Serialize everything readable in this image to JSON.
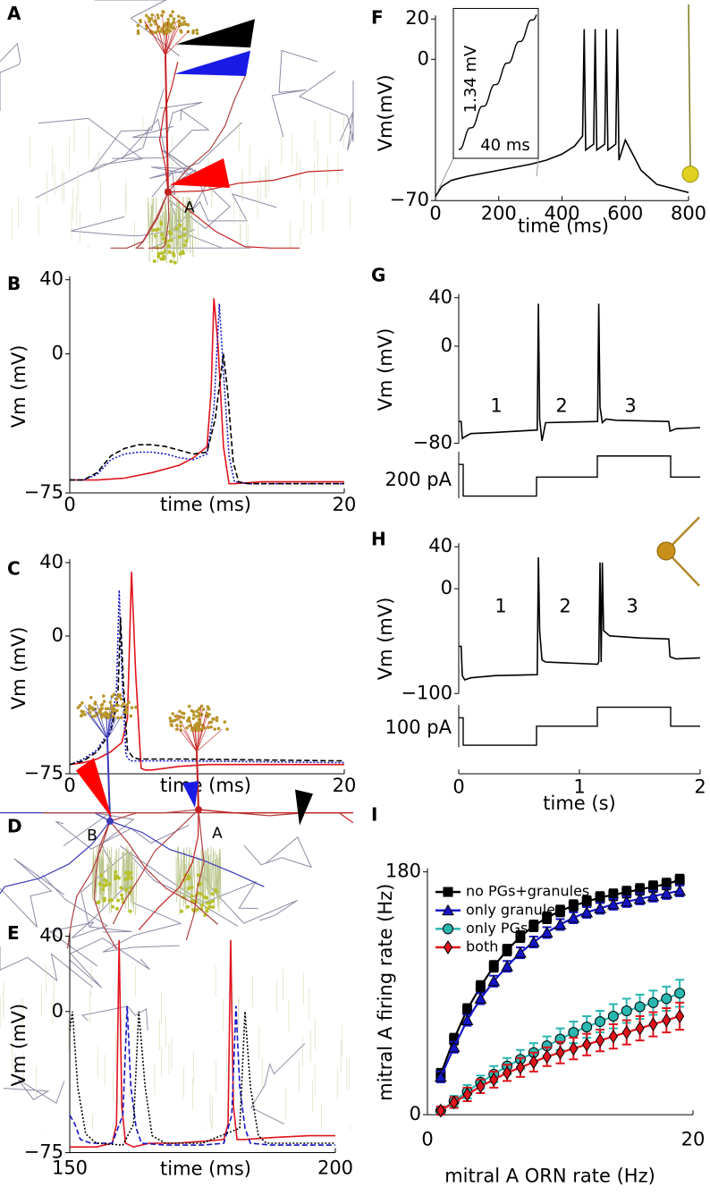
{
  "chart_data": [
    {
      "type": "illustration",
      "panel": "A",
      "labels": [
        "A"
      ]
    },
    {
      "type": "line",
      "panel": "B",
      "x_label": "time (ms)",
      "y_label": "Vm (mV)",
      "xlim": [
        0,
        20
      ],
      "xticks": [
        0,
        20
      ],
      "ylim": [
        -75,
        40
      ],
      "yticks": [
        40,
        0,
        {
          "value": -75,
          "label": "−75"
        }
      ],
      "series": [
        {
          "color": "#e0141c",
          "style": "solid",
          "x": [
            0,
            2,
            4,
            6,
            8,
            9,
            10,
            10.3,
            10.5,
            10.8,
            11.2,
            11.6,
            12,
            14,
            20
          ],
          "values": [
            -68,
            -68,
            -67,
            -64,
            -60,
            -56,
            -50,
            -20,
            30,
            5,
            -50,
            -70,
            -70,
            -69,
            -69
          ]
        },
        {
          "color": "#1515c8",
          "style": "dotted",
          "x": [
            0,
            1,
            2,
            3,
            4,
            5,
            6,
            7,
            8,
            9,
            10,
            10.5,
            10.9,
            11.2,
            11.6,
            12,
            13,
            20
          ],
          "values": [
            -68,
            -68,
            -65,
            -57,
            -54,
            -53,
            -53,
            -54,
            -56,
            -57,
            -54,
            -30,
            27,
            -10,
            -55,
            -69,
            -70,
            -70
          ]
        },
        {
          "color": "#000000",
          "style": "dashed",
          "x": [
            0,
            1,
            2,
            3,
            4,
            5,
            6,
            7,
            8,
            9,
            10,
            10.6,
            11.2,
            11.5,
            11.9,
            12.3,
            13,
            20
          ],
          "values": [
            -68,
            -68,
            -64,
            -55,
            -51,
            -49,
            -49,
            -50,
            -52,
            -54,
            -53,
            -35,
            0,
            -20,
            -58,
            -69,
            -70,
            -70
          ]
        }
      ]
    },
    {
      "type": "line",
      "panel": "C",
      "x_label": "time (ms)",
      "y_label": "Vm (mV)",
      "xlim": [
        0,
        20
      ],
      "xticks": [
        0,
        20
      ],
      "ylim": [
        -75,
        40
      ],
      "yticks": [
        40,
        0,
        {
          "value": -75,
          "label": "−75"
        }
      ],
      "series": [
        {
          "color": "#e0141c",
          "style": "solid",
          "x": [
            0,
            1,
            2,
            3,
            3.8,
            4.2,
            4.5,
            4.8,
            5.2,
            5.5,
            6,
            8,
            10,
            20
          ],
          "values": [
            -70,
            -69,
            -67,
            -63,
            -58,
            -45,
            35,
            -20,
            -72,
            -73,
            -73,
            -71,
            -70,
            -70
          ]
        },
        {
          "color": "#1515c8",
          "style": "dotted",
          "x": [
            0,
            1,
            2,
            3,
            3.4,
            3.6,
            3.8,
            4.1,
            4.4,
            5,
            8,
            20
          ],
          "values": [
            -70,
            -67,
            -62,
            -50,
            -30,
            25,
            -20,
            -65,
            -68,
            -68,
            -68,
            -69
          ]
        },
        {
          "color": "#000000",
          "style": "dashed",
          "x": [
            0,
            1,
            2,
            3,
            3.5,
            3.7,
            3.9,
            4.2,
            4.6,
            5,
            8,
            20
          ],
          "values": [
            -70,
            -68,
            -63,
            -52,
            -35,
            10,
            -25,
            -62,
            -66,
            -67,
            -67,
            -68
          ]
        }
      ]
    },
    {
      "type": "illustration",
      "panel": "D",
      "labels": [
        "B",
        "A"
      ]
    },
    {
      "type": "line",
      "panel": "E",
      "x_label": "time (ms)",
      "y_label": "Vm (mV)",
      "xlim": [
        150,
        200
      ],
      "xticks": [
        150,
        200
      ],
      "ylim": [
        -75,
        40
      ],
      "yticks": [
        40,
        0,
        {
          "value": -75,
          "label": "−75"
        }
      ],
      "series": [
        {
          "color": "#e0141c",
          "style": "solid",
          "x": [
            150,
            155,
            158,
            158.8,
            159.3,
            159.8,
            160.5,
            162,
            165,
            170,
            175,
            179,
            179.8,
            180.3,
            180.8,
            181.5,
            183,
            188,
            195,
            200
          ],
          "values": [
            -72,
            -72,
            -70,
            -60,
            38,
            -50,
            -70,
            -72,
            -70,
            -70,
            -69,
            -68,
            -60,
            38,
            -50,
            -68,
            -68,
            -67,
            -66,
            -66
          ]
        },
        {
          "color": "#1515c8",
          "style": "dashed",
          "x": [
            150,
            151,
            152,
            154,
            158,
            160,
            160.8,
            161.5,
            162.5,
            163.5,
            168,
            175,
            179,
            180.5,
            181.3,
            182,
            183,
            184,
            188,
            200
          ],
          "values": [
            -55,
            -60,
            -68,
            -70,
            -70,
            -55,
            3,
            -40,
            -62,
            -70,
            -71,
            -71,
            -70,
            -55,
            3,
            -40,
            -62,
            -70,
            -71,
            -71
          ]
        },
        {
          "color": "#000000",
          "style": "dotted",
          "x": [
            150,
            150.5,
            151.5,
            153,
            155,
            160,
            162,
            163,
            164.2,
            165.5,
            168,
            175,
            182,
            183,
            184,
            185.5,
            187,
            190,
            200
          ],
          "values": [
            -10,
            0,
            -40,
            -65,
            -70,
            -71,
            -60,
            0,
            -40,
            -66,
            -70,
            -70,
            -62,
            0,
            -40,
            -66,
            -70,
            -70,
            -70
          ]
        }
      ]
    },
    {
      "type": "line",
      "panel": "F",
      "x_label": "time (ms)",
      "y_label": "Vm(mV)",
      "inset_labels": [
        "1.34 mV",
        "40 ms"
      ],
      "xlim": [
        0,
        800
      ],
      "xticks": [
        0,
        200,
        400,
        600,
        800
      ],
      "ylim": [
        -70,
        20
      ],
      "yticks": [
        20,
        0,
        {
          "value": -70,
          "label": "−70"
        }
      ],
      "series": [
        {
          "color": "#000000",
          "style": "solid",
          "x": [
            0,
            20,
            50,
            100,
            200,
            300,
            350,
            400,
            440,
            465,
            470,
            475,
            500,
            505,
            510,
            535,
            540,
            545,
            570,
            575,
            580,
            600,
            650,
            700,
            800
          ],
          "values": [
            -68,
            -63,
            -60,
            -58,
            -55,
            -52,
            -50,
            -47,
            -43,
            -38,
            15,
            -45,
            -42,
            15,
            -45,
            -42,
            15,
            -45,
            -42,
            15,
            -50,
            -40,
            -55,
            -62,
            -66
          ]
        }
      ]
    },
    {
      "type": "line",
      "panel": "G",
      "y_label": "Vm (mV)",
      "phase_labels": [
        "1",
        "2",
        "3"
      ],
      "current_label": "200 pA",
      "xlim": [
        0,
        2
      ],
      "ylim": [
        -80,
        40
      ],
      "yticks": [
        40,
        0,
        {
          "value": -80,
          "label": "−80"
        }
      ],
      "series": [
        {
          "color": "#000000",
          "style": "solid",
          "x": [
            0,
            0.02,
            0.03,
            0.06,
            0.1,
            0.3,
            0.65,
            0.66,
            0.67,
            0.69,
            0.72,
            1.15,
            1.16,
            1.17,
            1.19,
            1.22,
            1.3,
            1.74,
            1.75,
            1.8,
            2
          ],
          "values": [
            -62,
            -62,
            -76,
            -74,
            -72,
            -71,
            -69,
            35,
            -60,
            -78,
            -63,
            -62,
            35,
            -50,
            -63,
            -60,
            -61,
            -62,
            -70,
            -68,
            -67
          ]
        }
      ]
    },
    {
      "type": "line",
      "panel": "H",
      "x_label": "time (s)",
      "y_label": "Vm (mV)",
      "phase_labels": [
        "1",
        "2",
        "3"
      ],
      "current_label": "100 pA",
      "xlim": [
        0,
        2
      ],
      "xticks": [
        0,
        1,
        2
      ],
      "ylim": [
        -100,
        40
      ],
      "yticks": [
        40,
        0,
        {
          "value": -100,
          "label": "−100"
        }
      ],
      "series": [
        {
          "color": "#000000",
          "style": "solid",
          "x": [
            0,
            0.02,
            0.03,
            0.05,
            0.1,
            0.3,
            0.65,
            0.66,
            0.67,
            0.69,
            0.72,
            1.15,
            1.16,
            1.17,
            1.18,
            1.19,
            1.2,
            1.25,
            1.5,
            1.74,
            1.75,
            1.8,
            2
          ],
          "values": [
            -55,
            -55,
            -83,
            -87,
            -85,
            -83,
            -82,
            30,
            -40,
            -68,
            -70,
            -72,
            -70,
            25,
            -70,
            25,
            -40,
            -45,
            -47,
            -48,
            -65,
            -67,
            -66
          ]
        }
      ]
    },
    {
      "type": "errorbar",
      "panel": "I",
      "x_label": "mitral A ORN rate (Hz)",
      "y_label": "mitral A firing rate (Hz)",
      "xlim": [
        0,
        20
      ],
      "xticks": [
        0,
        20
      ],
      "ylim": [
        0,
        180
      ],
      "yticks": [
        0,
        180
      ],
      "x": [
        1,
        2,
        3,
        4,
        5,
        6,
        7,
        8,
        9,
        10,
        11,
        12,
        13,
        14,
        15,
        16,
        17,
        18,
        19
      ],
      "series": [
        {
          "name": "no PGs+granules",
          "color": "#000000",
          "marker": "square",
          "values": [
            30,
            56,
            78,
            95,
            110,
            122,
            132,
            140,
            146,
            151,
            155,
            158,
            161,
            163,
            165,
            167,
            169,
            171,
            174
          ],
          "errors": [
            4,
            4,
            4,
            4,
            4,
            4,
            4,
            4,
            4,
            4,
            4,
            4,
            4,
            4,
            4,
            4,
            4,
            4,
            4
          ]
        },
        {
          "name": "only granules",
          "color": "#1515c8",
          "marker": "triangle",
          "values": [
            28,
            50,
            70,
            86,
            99,
            110,
            120,
            128,
            135,
            141,
            146,
            150,
            153,
            156,
            158,
            160,
            162,
            164,
            166
          ],
          "errors": [
            4,
            4,
            4,
            4,
            4,
            4,
            4,
            4,
            4,
            4,
            4,
            4,
            4,
            4,
            4,
            4,
            4,
            4,
            4
          ]
        },
        {
          "name": "only PGs",
          "color": "#2ab7b0",
          "marker": "circle",
          "values": [
            3,
            10,
            17,
            24,
            30,
            36,
            41,
            46,
            51,
            56,
            61,
            65,
            69,
            73,
            77,
            80,
            83,
            86,
            90
          ],
          "errors": [
            3,
            4,
            5,
            5,
            6,
            6,
            7,
            7,
            7,
            8,
            8,
            8,
            8,
            9,
            9,
            9,
            9,
            9,
            10
          ]
        },
        {
          "name": "both",
          "color": "#e0141c",
          "marker": "diamond",
          "values": [
            3,
            9,
            15,
            21,
            26,
            31,
            35,
            39,
            43,
            46,
            49,
            52,
            55,
            58,
            61,
            64,
            67,
            70,
            73
          ],
          "errors": [
            3,
            4,
            5,
            5,
            6,
            6,
            7,
            7,
            7,
            8,
            8,
            8,
            8,
            9,
            9,
            9,
            9,
            9,
            10
          ]
        }
      ]
    }
  ]
}
